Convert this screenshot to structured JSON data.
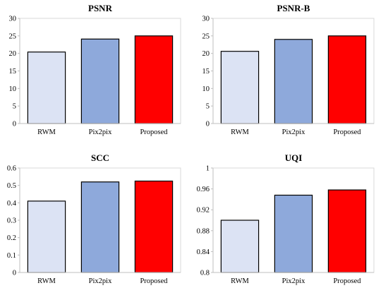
{
  "chart_data": [
    {
      "type": "bar",
      "title": "PSNR",
      "categories": [
        "RWM",
        "Pix2pix",
        "Proposed"
      ],
      "values": [
        20.4,
        24.1,
        25.0
      ],
      "ylim": [
        0,
        30
      ],
      "yticks": [
        0,
        5,
        10,
        15,
        20,
        25,
        30
      ],
      "ytick_labels": [
        "0",
        "5",
        "10",
        "15",
        "20",
        "25",
        "30"
      ],
      "colors": [
        "#dce3f4",
        "#8ea9db",
        "#ff0000"
      ],
      "grid": false
    },
    {
      "type": "bar",
      "title": "PSNR-B",
      "categories": [
        "RWM",
        "Pix2pix",
        "Proposed"
      ],
      "values": [
        20.6,
        24.0,
        25.0
      ],
      "ylim": [
        0,
        30
      ],
      "yticks": [
        0,
        5,
        10,
        15,
        20,
        25,
        30
      ],
      "ytick_labels": [
        "0",
        "5",
        "10",
        "15",
        "20",
        "25",
        "30"
      ],
      "colors": [
        "#dce3f4",
        "#8ea9db",
        "#ff0000"
      ],
      "grid": false
    },
    {
      "type": "bar",
      "title": "SCC",
      "categories": [
        "RWM",
        "Pix2pix",
        "Proposed"
      ],
      "values": [
        0.41,
        0.52,
        0.525
      ],
      "ylim": [
        0,
        0.6
      ],
      "yticks": [
        0,
        0.1,
        0.2,
        0.3,
        0.4,
        0.5,
        0.6
      ],
      "ytick_labels": [
        "0",
        "0.1",
        "0.2",
        "0.3",
        "0.4",
        "0.5",
        "0.6"
      ],
      "colors": [
        "#dce3f4",
        "#8ea9db",
        "#ff0000"
      ],
      "grid": false
    },
    {
      "type": "bar",
      "title": "UQI",
      "categories": [
        "RWM",
        "Pix2pix",
        "Proposed"
      ],
      "values": [
        0.9,
        0.948,
        0.958
      ],
      "ylim": [
        0.8,
        1.0
      ],
      "yticks": [
        0.8,
        0.84,
        0.88,
        0.92,
        0.96,
        1.0
      ],
      "ytick_labels": [
        "0.8",
        "0.84",
        "0.88",
        "0.92",
        "0.96",
        "1"
      ],
      "colors": [
        "#dce3f4",
        "#8ea9db",
        "#ff0000"
      ],
      "grid": false
    }
  ]
}
